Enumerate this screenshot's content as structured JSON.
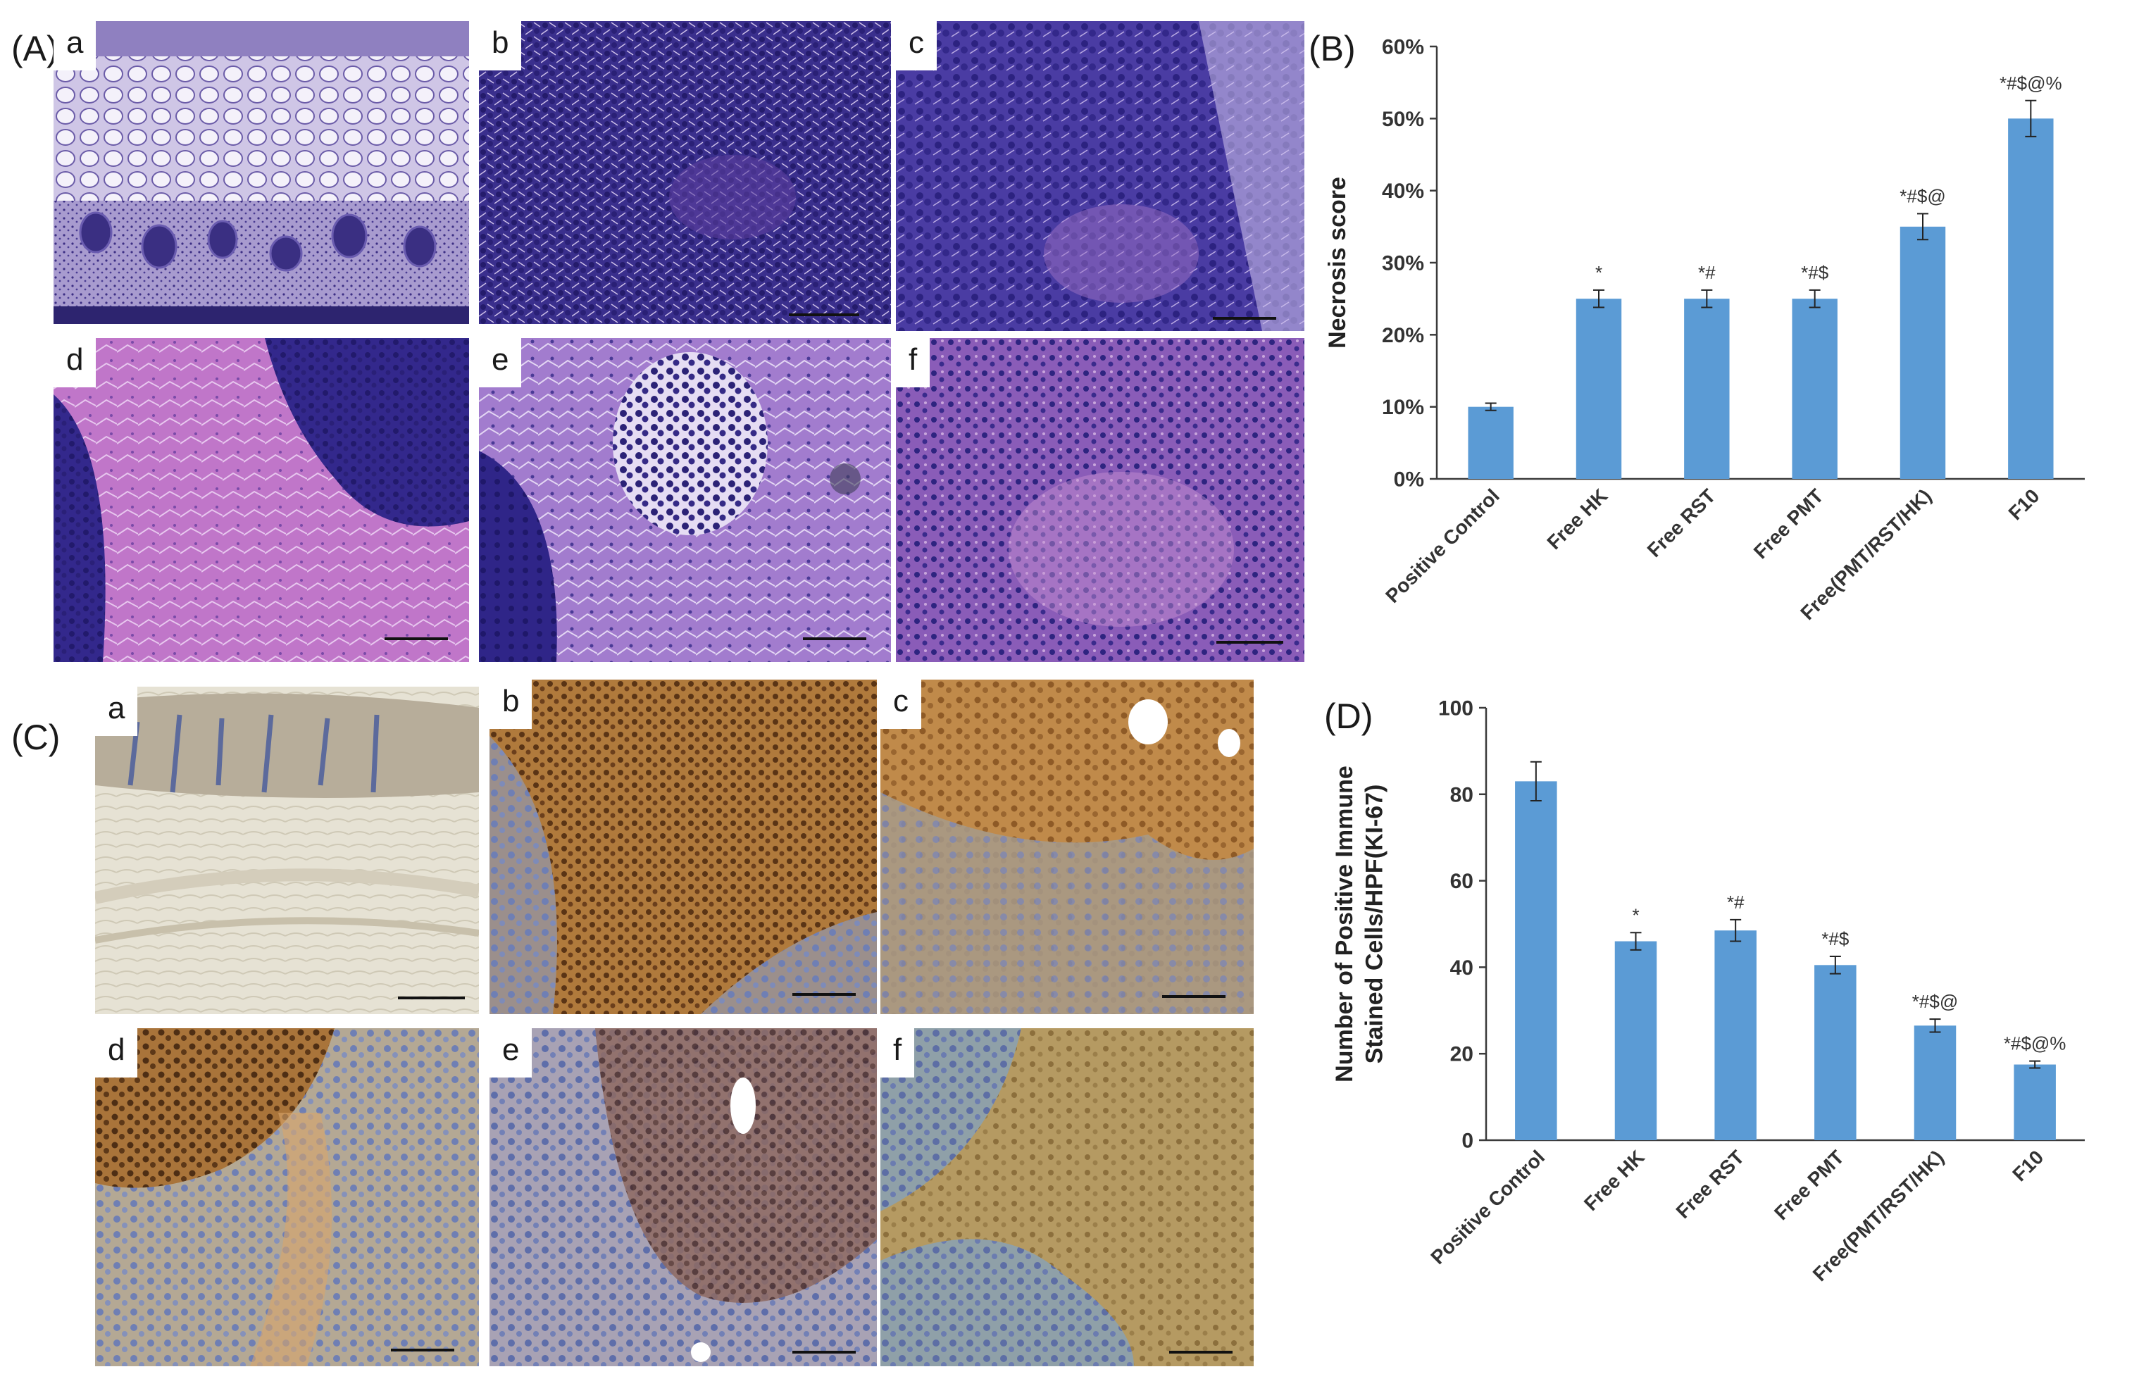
{
  "figure": {
    "panel_A_label": "(A)",
    "panel_B_label": "(B)",
    "panel_C_label": "(C)",
    "panel_D_label": "(D)",
    "subpanel_labels": [
      "a",
      "b",
      "c",
      "d",
      "e",
      "f"
    ]
  },
  "stain_colors": {
    "he_dark": "#2f2a86",
    "he_mid": "#5a3fa6",
    "he_light": "#b48fd3",
    "he_pink": "#c66fc8",
    "ihc_brown": "#a0662a",
    "ihc_blue": "#6f7fb4",
    "ihc_pale": "#e2ddcf"
  },
  "chart_data": [
    {
      "type": "bar",
      "categories": [
        "Positive Control",
        "Free HK",
        "Free RST",
        "Free PMT",
        "Free(PMT/RST/HK)",
        "F10"
      ],
      "values": [
        10,
        25,
        25,
        25,
        35,
        50
      ],
      "errors": [
        0.5,
        1.2,
        1.2,
        1.2,
        1.8,
        2.5
      ],
      "annotations": [
        "",
        "*",
        "*#",
        "*#$",
        "*#$@",
        "*#$@%"
      ],
      "ylabel": "Necrosis score",
      "ylim": [
        0,
        60
      ],
      "yticks": [
        "0%",
        "10%",
        "20%",
        "30%",
        "40%",
        "50%",
        "60%"
      ],
      "grid": false,
      "color": "#5b9bd5"
    },
    {
      "type": "bar",
      "categories": [
        "Positive Control",
        "Free HK",
        "Free RST",
        "Free PMT",
        "Free(PMT/RST/HK)",
        "F10"
      ],
      "values": [
        83,
        46,
        48.5,
        40.5,
        26.5,
        17.5
      ],
      "errors": [
        4.5,
        2.0,
        2.5,
        2.0,
        1.5,
        0.8
      ],
      "annotations": [
        "",
        "*",
        "*#",
        "*#$",
        "*#$@",
        "*#$@%"
      ],
      "ylabel_lines": [
        "Number of Positive Immune",
        "Stained Cells/HPF(KI-67)"
      ],
      "ylim": [
        0,
        100
      ],
      "yticks": [
        "0",
        "20",
        "40",
        "60",
        "80",
        "100"
      ],
      "grid": false,
      "color": "#5b9bd5"
    }
  ]
}
